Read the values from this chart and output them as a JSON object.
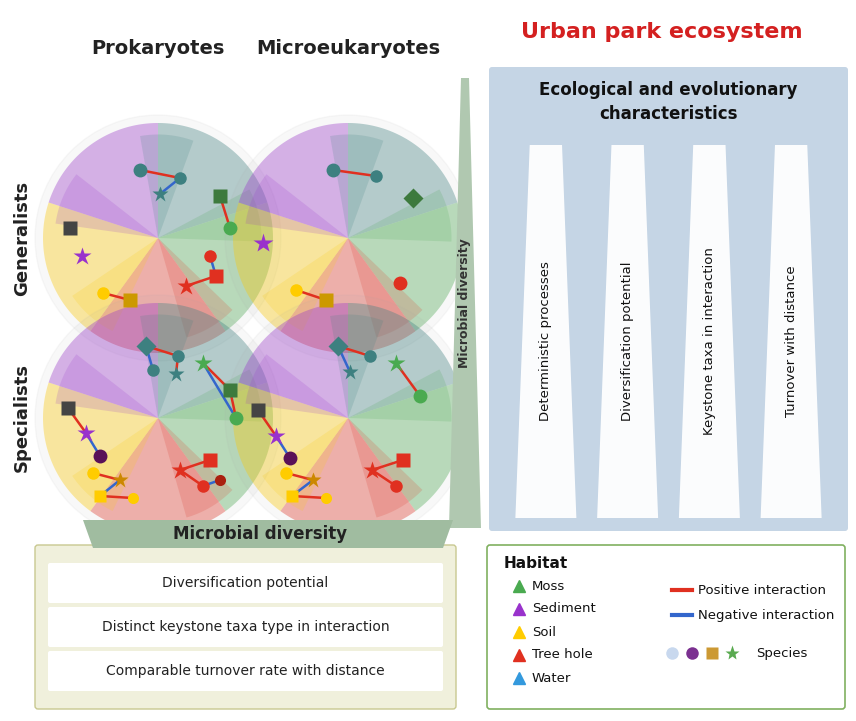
{
  "title_urban": "Urban park ecosystem",
  "title_prok": "Prokaryotes",
  "title_micro": "Microeukaryotes",
  "label_generalists": "Generalists",
  "label_specialists": "Specialists",
  "label_microbial_diversity": "Microbial diversity",
  "eco_title": "Ecological and evolutionary\ncharacteristics",
  "eco_labels": [
    "Deterministic processes",
    "Diversification potential",
    "Keystone taxa in interaction",
    "Turnover with distance"
  ],
  "bottom_left_title": "Microbial diversity",
  "bottom_left_items": [
    "Diversification potential",
    "Distinct keystone taxa type in interaction",
    "Comparable turnover rate with distance"
  ],
  "habitat_title": "Habitat",
  "habitat_items": [
    {
      "label": "Moss",
      "color": "#4aaa50",
      "marker": "^"
    },
    {
      "label": "Sediment",
      "color": "#9932CC",
      "marker": "^"
    },
    {
      "label": "Soil",
      "color": "#FFCC00",
      "marker": "^"
    },
    {
      "label": "Tree hole",
      "color": "#E03020",
      "marker": "^"
    },
    {
      "label": "Water",
      "color": "#3399DD",
      "marker": "^"
    }
  ],
  "interaction_items": [
    {
      "label": "Positive interaction",
      "color": "#E03020"
    },
    {
      "label": "Negative interaction",
      "color": "#3366CC"
    }
  ],
  "species_colors": [
    "#c8d8ee",
    "#7B3090",
    "#CC9933",
    "#5aaa50"
  ],
  "species_markers": [
    "o",
    "o",
    "s",
    "*"
  ],
  "bg_color": "#ffffff",
  "eco_bg": "#c5d5e5",
  "bottom_left_banner": "#a0bca0",
  "bottom_left_box_bg": "#f0f0dc",
  "bottom_left_box_border": "#c8c890",
  "habitat_border": "#80b060",
  "mv_color": "#b0c8b0",
  "teal_c": "#3d8080",
  "moss_c": "#4aaa50",
  "sed_c": "#9932CC",
  "soil_c": "#FFCC00",
  "treehole_c": "#E03020",
  "pos_col": "#E03020",
  "neg_col": "#3366CC"
}
